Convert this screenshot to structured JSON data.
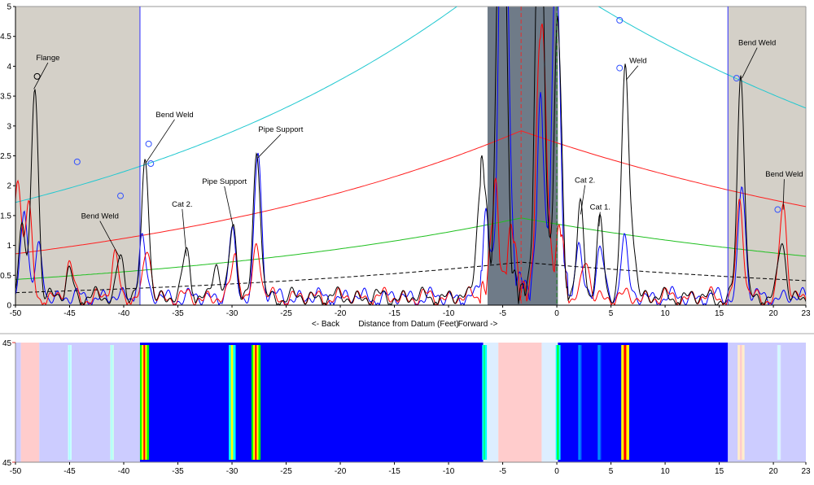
{
  "chart_data": [
    {
      "type": "line",
      "xlim": [
        -50,
        23
      ],
      "ylim": [
        0,
        5
      ],
      "x_ticks": [
        -50,
        -45,
        -40,
        -35,
        -30,
        -25,
        -20,
        -15,
        -10,
        -5,
        0,
        5,
        10,
        15,
        20,
        23
      ],
      "y_ticks": [
        0,
        0.5,
        1,
        1.5,
        2,
        2.5,
        3,
        3.5,
        4,
        4.5,
        5
      ],
      "xlabel": "Distance from Datum (Feet)",
      "xlabel_left": "<- Back",
      "xlabel_right": "Forward ->",
      "grid": false,
      "shaded_regions": [
        {
          "from": -50,
          "to": -38.5,
          "color": "#d4d0c8"
        },
        {
          "from": 15.8,
          "to": 23,
          "color": "#d4d0c8"
        },
        {
          "from": -6.4,
          "to": 0.1,
          "color": "#6f7b88"
        }
      ],
      "vertical_lines": [
        {
          "x": -38.5,
          "color": "#3030ff",
          "style": "solid"
        },
        {
          "x": 15.8,
          "color": "#3030ff",
          "style": "solid"
        },
        {
          "x": -3.3,
          "color": "#e03030",
          "style": "dashed"
        },
        {
          "x": 0,
          "color": "#208020",
          "style": "dashed"
        }
      ],
      "dac_curves": [
        {
          "color": "#20c8d0",
          "style": "solid",
          "points": [
            [
              -50,
              1.72
            ],
            [
              -3.3,
              5.84
            ],
            [
              23,
              3.3
            ]
          ]
        },
        {
          "color": "#ff2020",
          "style": "solid",
          "points": [
            [
              -50,
              0.86
            ],
            [
              -3.3,
              2.92
            ],
            [
              23,
              1.65
            ]
          ]
        },
        {
          "color": "#20c020",
          "style": "solid",
          "points": [
            [
              -50,
              0.43
            ],
            [
              -3.3,
              1.46
            ],
            [
              23,
              0.82
            ]
          ]
        },
        {
          "color": "#000000",
          "style": "dashed",
          "points": [
            [
              -50,
              0.21
            ],
            [
              -3.3,
              0.72
            ],
            [
              23,
              0.41
            ]
          ]
        }
      ],
      "series": [
        {
          "color": "#000000",
          "peaks": [
            [
              -49.4,
              1.2
            ],
            [
              -48.2,
              3.6
            ],
            [
              -45,
              0.45
            ],
            [
              -40.3,
              0.75
            ],
            [
              -38,
              2.35
            ],
            [
              -34.2,
              0.8
            ],
            [
              -31.5,
              0.55
            ],
            [
              -29.9,
              1.3
            ],
            [
              -27.7,
              2.45
            ],
            [
              -7.3,
              0.9
            ],
            [
              -6.8,
              1.85
            ],
            [
              -5.3,
              5.5
            ],
            [
              -4.9,
              5.5
            ],
            [
              -1.7,
              5.5
            ],
            [
              -1.3,
              3.0
            ],
            [
              0.1,
              4.5
            ],
            [
              2.2,
              1.5
            ],
            [
              4,
              1.3
            ],
            [
              6.3,
              3.75
            ],
            [
              7,
              0.9
            ],
            [
              17,
              3.75
            ],
            [
              20.8,
              0.95
            ]
          ]
        },
        {
          "color": "#ff0000",
          "peaks": [
            [
              -49.8,
              2.05
            ],
            [
              -48.8,
              1.5
            ],
            [
              -45,
              0.55
            ],
            [
              -40.8,
              0.7
            ],
            [
              -37.8,
              0.8
            ],
            [
              -29.7,
              0.7
            ],
            [
              -27.7,
              0.9
            ],
            [
              -5.7,
              1.6
            ],
            [
              -4.2,
              0.9
            ],
            [
              -1.6,
              3.4
            ],
            [
              -1.1,
              2.4
            ],
            [
              0.3,
              0.95
            ],
            [
              2.7,
              0.6
            ],
            [
              16.9,
              1.6
            ],
            [
              20.9,
              1.55
            ]
          ]
        },
        {
          "color": "#0000ff",
          "peaks": [
            [
              -49.2,
              1.55
            ],
            [
              -47.8,
              0.8
            ],
            [
              -38.3,
              1.0
            ],
            [
              -30,
              1.05
            ],
            [
              -27.6,
              2.45
            ],
            [
              -6.5,
              1.2
            ],
            [
              -5.1,
              5.5
            ],
            [
              -4.7,
              5.5
            ],
            [
              -1.5,
              3.0
            ],
            [
              -0.3,
              1.8
            ],
            [
              0,
              4.2
            ],
            [
              2,
              0.9
            ],
            [
              4,
              0.85
            ],
            [
              6.2,
              1.0
            ],
            [
              17.1,
              1.9
            ]
          ]
        }
      ],
      "markers_blue": [
        [
          -44.3,
          2.4
        ],
        [
          -40.3,
          1.83
        ],
        [
          -37.7,
          2.7
        ],
        [
          -37.5,
          2.37
        ],
        [
          5.8,
          4.77
        ],
        [
          5.8,
          3.97
        ],
        [
          16.6,
          3.8
        ],
        [
          20.4,
          1.6
        ]
      ],
      "markers_black": [
        [
          -48,
          3.83
        ]
      ],
      "annotations": [
        {
          "text": "Flange",
          "label": [
            -47,
            4.1
          ],
          "target": [
            -48.3,
            3.62
          ]
        },
        {
          "text": "Bend Weld",
          "label": [
            -42.2,
            1.45
          ],
          "target": [
            -40.3,
            0.77
          ]
        },
        {
          "text": "Bend Weld",
          "label": [
            -35.3,
            3.15
          ],
          "target": [
            -38,
            2.37
          ]
        },
        {
          "text": "Pipe Support",
          "label": [
            -25.5,
            2.9
          ],
          "target": [
            -27.6,
            2.47
          ]
        },
        {
          "text": "Pipe Support",
          "label": [
            -30.7,
            2.03
          ],
          "target": [
            -29.9,
            1.32
          ]
        },
        {
          "text": "Cat 2.",
          "label": [
            -34.6,
            1.65
          ],
          "target": [
            -34.2,
            0.82
          ]
        },
        {
          "text": "Cat 2.",
          "label": [
            2.6,
            2.05
          ],
          "target": [
            2.2,
            1.52
          ]
        },
        {
          "text": "Cat 1.",
          "label": [
            4,
            1.6
          ],
          "target": [
            3.9,
            1.32
          ]
        },
        {
          "text": "Weld",
          "label": [
            7.5,
            4.05
          ],
          "target": [
            6.4,
            3.77
          ]
        },
        {
          "text": "Bend Weld",
          "label": [
            18.5,
            4.35
          ],
          "target": [
            17.1,
            3.8
          ]
        },
        {
          "text": "Bend Weld",
          "label": [
            21,
            2.15
          ],
          "target": [
            20.9,
            1.6
          ]
        }
      ]
    },
    {
      "type": "heatmap",
      "xlim": [
        -50,
        23
      ],
      "x_ticks": [
        -50,
        -45,
        -40,
        -35,
        -30,
        -25,
        -20,
        -15,
        -10,
        -5,
        0,
        5,
        10,
        15,
        20,
        23
      ],
      "y_tick_top": "45",
      "y_tick_bottom": "45",
      "background_bands": [
        {
          "from": -50,
          "to": -49.5,
          "color": "#ccccff"
        },
        {
          "from": -49.5,
          "to": -47.8,
          "color": "#ffcccc"
        },
        {
          "from": -47.8,
          "to": -38.5,
          "color": "#ccccff"
        },
        {
          "from": -38.5,
          "to": -6.8,
          "color": "#0000ff"
        },
        {
          "from": -6.8,
          "to": -5.4,
          "color": "#ddeeff"
        },
        {
          "from": -5.4,
          "to": -1.4,
          "color": "#ffcccc"
        },
        {
          "from": -1.4,
          "to": 0.1,
          "color": "#ddeeff"
        },
        {
          "from": 0.1,
          "to": 15.8,
          "color": "#0000ff"
        },
        {
          "from": 15.8,
          "to": 23,
          "color": "#ccccff"
        }
      ],
      "stripes": [
        {
          "x": -38.1,
          "width": 0.8,
          "colors": [
            "#00ff00",
            "#ffff00",
            "#ff0000",
            "#ffff00",
            "#00ff00"
          ]
        },
        {
          "x": -30,
          "width": 0.6,
          "colors": [
            "#00ffff",
            "#ffff00",
            "#00ffff"
          ]
        },
        {
          "x": -27.8,
          "width": 0.8,
          "colors": [
            "#00ff00",
            "#ffff00",
            "#ff0000",
            "#ffff00",
            "#00ff00"
          ]
        },
        {
          "x": -6.7,
          "width": 0.4,
          "colors": [
            "#00ffff",
            "#00ff80",
            "#00ffff"
          ]
        },
        {
          "x": 0.1,
          "width": 0.4,
          "colors": [
            "#00ffff",
            "#00ff00",
            "#00ffff"
          ]
        },
        {
          "x": 6.3,
          "width": 0.7,
          "colors": [
            "#ffff00",
            "#ff0000",
            "#ffff00"
          ]
        },
        {
          "x": 17,
          "width": 0.6,
          "colors": [
            "#ffeecc",
            "#ffcccc",
            "#ffeecc"
          ]
        },
        {
          "x": -45,
          "width": 0.3,
          "colors": [
            "#ccffff",
            "#aaffff",
            "#ccffff"
          ]
        },
        {
          "x": -41.1,
          "width": 0.3,
          "colors": [
            "#ccffee",
            "#aaffff",
            "#ccffee"
          ]
        },
        {
          "x": 20.5,
          "width": 0.3,
          "colors": [
            "#ddeeff",
            "#ccffff",
            "#ddeeff"
          ]
        },
        {
          "x": 2.1,
          "width": 0.3,
          "colors": [
            "#0060ff",
            "#00a0ff",
            "#0060ff"
          ]
        },
        {
          "x": 3.9,
          "width": 0.3,
          "colors": [
            "#0060ff",
            "#00a0ff",
            "#0060ff"
          ]
        }
      ]
    }
  ]
}
